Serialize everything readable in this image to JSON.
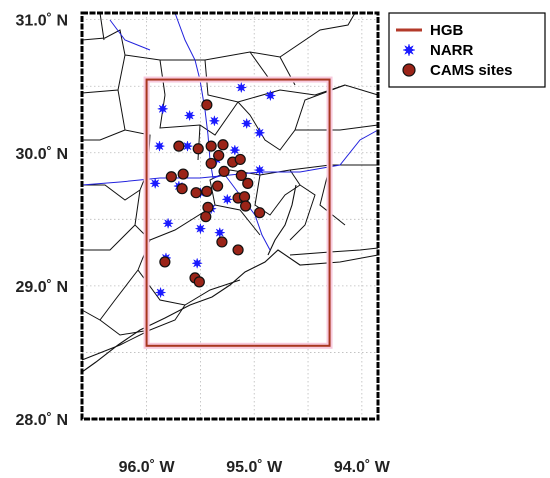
{
  "map": {
    "lat_ticks": [
      {
        "value": 31.0,
        "label": "31.0˚ N"
      },
      {
        "value": 30.0,
        "label": "30.0˚ N"
      },
      {
        "value": 29.0,
        "label": "29.0˚ N"
      },
      {
        "value": 28.0,
        "label": "28.0˚ N"
      }
    ],
    "lon_ticks": [
      {
        "value": -96.0,
        "label": "96.0˚ W"
      },
      {
        "value": -95.0,
        "label": "95.0˚ W"
      },
      {
        "value": -94.0,
        "label": "94.0˚ W"
      }
    ],
    "extent": {
      "lon": [
        -96.6,
        -93.85
      ],
      "lat": [
        28.0,
        31.05
      ]
    },
    "hgb_box": {
      "lon": [
        -96.0,
        -94.3
      ],
      "lat": [
        28.55,
        30.55
      ]
    },
    "legend": [
      {
        "key": "hgb",
        "label": "HGB",
        "color": "#b33a2a",
        "symbol": "line"
      },
      {
        "key": "narr",
        "label": "NARR",
        "color": "#1a1aff",
        "symbol": "star"
      },
      {
        "key": "cams",
        "label": "CAMS sites",
        "color": "#9b2418",
        "symbol": "circle"
      }
    ],
    "narr_points": [
      [
        -95.85,
        30.33
      ],
      [
        -95.6,
        30.28
      ],
      [
        -95.37,
        30.24
      ],
      [
        -95.12,
        30.49
      ],
      [
        -94.85,
        30.43
      ],
      [
        -94.95,
        30.15
      ],
      [
        -95.07,
        30.22
      ],
      [
        -95.88,
        30.05
      ],
      [
        -95.62,
        30.05
      ],
      [
        -95.35,
        29.95
      ],
      [
        -95.18,
        30.02
      ],
      [
        -94.95,
        29.87
      ],
      [
        -95.92,
        29.77
      ],
      [
        -95.7,
        29.75
      ],
      [
        -95.5,
        29.7
      ],
      [
        -95.8,
        29.47
      ],
      [
        -95.5,
        29.43
      ],
      [
        -95.32,
        29.4
      ],
      [
        -95.82,
        29.21
      ],
      [
        -95.53,
        29.17
      ],
      [
        -95.87,
        28.95
      ],
      [
        -95.25,
        29.65
      ],
      [
        -95.4,
        29.58
      ]
    ],
    "cams_points": [
      [
        -95.44,
        30.36
      ],
      [
        -95.7,
        30.05
      ],
      [
        -95.52,
        30.03
      ],
      [
        -95.4,
        30.05
      ],
      [
        -95.29,
        30.06
      ],
      [
        -95.33,
        29.98
      ],
      [
        -95.2,
        29.93
      ],
      [
        -95.13,
        29.95
      ],
      [
        -95.4,
        29.92
      ],
      [
        -95.28,
        29.86
      ],
      [
        -95.66,
        29.84
      ],
      [
        -95.77,
        29.82
      ],
      [
        -95.12,
        29.83
      ],
      [
        -95.06,
        29.77
      ],
      [
        -95.67,
        29.73
      ],
      [
        -95.54,
        29.7
      ],
      [
        -95.44,
        29.71
      ],
      [
        -95.34,
        29.75
      ],
      [
        -95.15,
        29.66
      ],
      [
        -95.09,
        29.67
      ],
      [
        -95.08,
        29.6
      ],
      [
        -95.43,
        29.59
      ],
      [
        -95.45,
        29.52
      ],
      [
        -94.95,
        29.55
      ],
      [
        -95.3,
        29.33
      ],
      [
        -95.15,
        29.27
      ],
      [
        -95.83,
        29.18
      ],
      [
        -95.55,
        29.06
      ],
      [
        -95.51,
        29.03
      ]
    ]
  }
}
